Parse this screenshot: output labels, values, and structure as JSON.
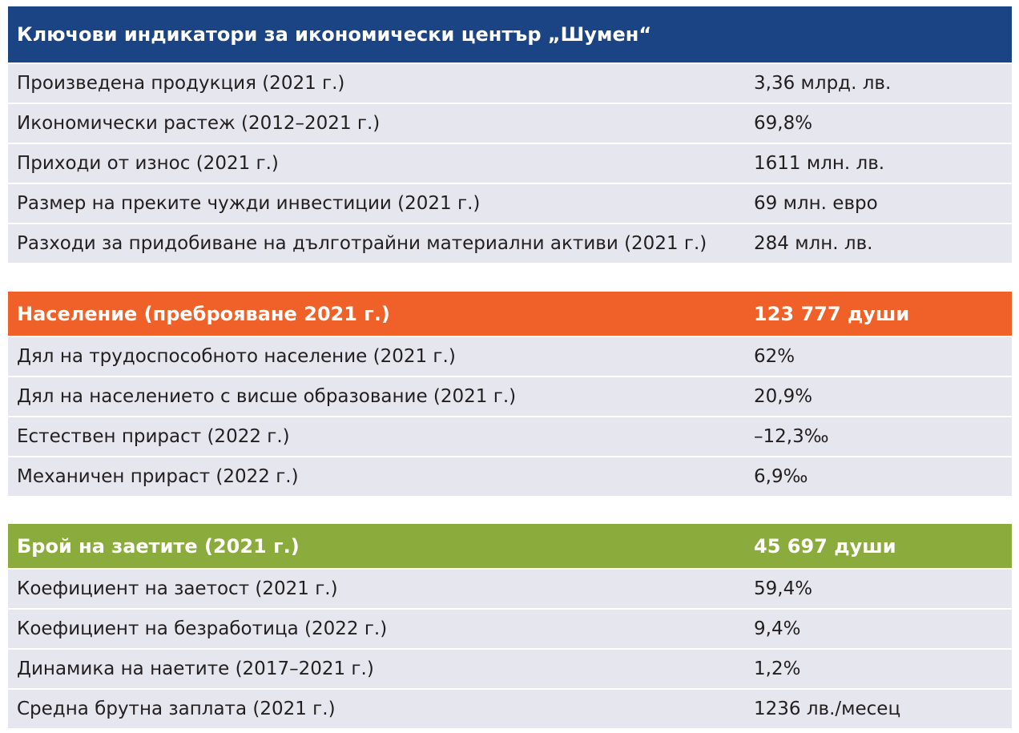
{
  "sections": [
    {
      "header": {
        "label": "Ключови индикатори за икономически център „Шумен“",
        "value": ""
      },
      "rows": [
        {
          "label": "Произведена продукция (2021 г.)",
          "value": "3,36 млрд. лв."
        },
        {
          "label": "Икономически растеж (2012–2021 г.)",
          "value": "69,8%"
        },
        {
          "label": "Приходи от износ (2021 г.)",
          "value": "1611 млн. лв."
        },
        {
          "label": "Размер на преките чужди инвестиции (2021 г.)",
          "value": "69 млн. евро"
        },
        {
          "label": "Разходи за придобиване на дълготрайни материални активи (2021 г.)",
          "value": "284 млн. лв."
        }
      ]
    },
    {
      "header": {
        "label": "Население (преброяване 2021 г.)",
        "value": "123 777 души"
      },
      "rows": [
        {
          "label": "Дял на трудоспособното население (2021 г.)",
          "value": "62%"
        },
        {
          "label": "Дял на населението с висше образование (2021 г.)",
          "value": "20,9%"
        },
        {
          "label": "Естествен прираст (2022 г.)",
          "value": "–12,3‰"
        },
        {
          "label": "Механичен прираст (2022 г.)",
          "value": "6,9‰"
        }
      ]
    },
    {
      "header": {
        "label": "Брой на заетите (2021 г.)",
        "value": "45 697 души"
      },
      "rows": [
        {
          "label": "Коефициент на заетост (2021 г.)",
          "value": "59,4%"
        },
        {
          "label": "Коефициент на безработица (2022 г.)",
          "value": "9,4%"
        },
        {
          "label": "Динамика на наетите (2017–2021 г.)",
          "value": "1,2%"
        },
        {
          "label": "Средна брутна заплата (2021 г.)",
          "value": "1236 лв./месец"
        }
      ]
    }
  ],
  "colors": {
    "header_blue": "#1b4484",
    "header_orange": "#ef6128",
    "header_green": "#8bab3c",
    "row_background": "#e6e6ee"
  }
}
